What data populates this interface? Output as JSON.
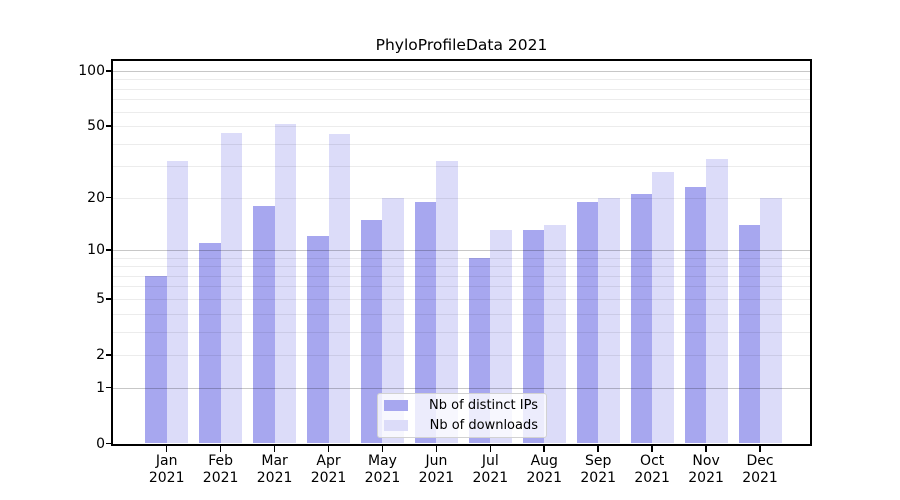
{
  "figure": {
    "title": "PhyloProfileData 2021"
  },
  "chart_data": {
    "type": "bar",
    "title": "PhyloProfileData 2021",
    "x_month_labels": [
      "Jan",
      "Feb",
      "Mar",
      "Apr",
      "May",
      "Jun",
      "Jul",
      "Aug",
      "Sep",
      "Oct",
      "Nov",
      "Dec"
    ],
    "x_year_label": "2021",
    "series": [
      {
        "name": "Nb of distinct IPs",
        "color": "#a7a7ef",
        "values": [
          7,
          11,
          18,
          12,
          15,
          19,
          9,
          13,
          19,
          21,
          23,
          14
        ]
      },
      {
        "name": "Nb of downloads",
        "color": "#dcdcf9",
        "values": [
          32,
          46,
          51,
          45,
          20,
          32,
          13,
          14,
          20,
          28,
          33,
          20
        ]
      }
    ],
    "y_axis": {
      "scale": "log1p",
      "tick_labels": [
        0,
        1,
        2,
        5,
        10,
        20,
        50,
        100
      ],
      "range": [
        0,
        113
      ],
      "major_gridlines": [
        1,
        10,
        100
      ],
      "minor_gridlines": [
        2,
        3,
        4,
        5,
        6,
        7,
        8,
        9,
        20,
        30,
        40,
        50,
        60,
        70,
        80,
        90
      ]
    },
    "legend": {
      "position": "bottom-center",
      "entries": [
        "Nb of distinct IPs",
        "Nb of downloads"
      ]
    },
    "grid": true,
    "xlabel": "",
    "ylabel": ""
  },
  "colors": {
    "bar_distinct_ips": "#a7a7ef",
    "bar_downloads": "#dcdcf9",
    "grid_major": "rgba(0,0,0,0.22)",
    "grid_minor": "rgba(0,0,0,0.075)",
    "spine": "#000000",
    "text": "#000000",
    "legend_border": "#d2d2d2"
  }
}
